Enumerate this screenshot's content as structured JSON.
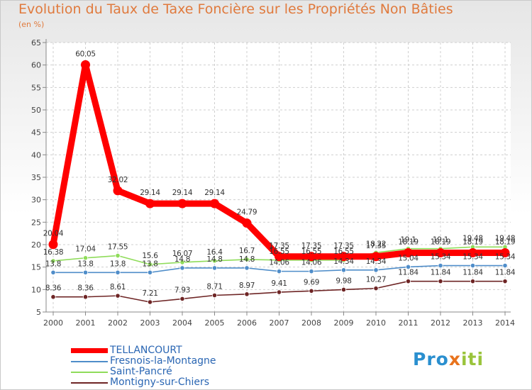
{
  "chart_data": {
    "type": "line",
    "title": "Evolution du Taux de Taxe Foncière sur les Propriétés Non Bâties",
    "ylabel": "(en %)",
    "xlabel": "",
    "ylim": [
      5,
      65
    ],
    "yticks": [
      5,
      10,
      15,
      20,
      25,
      30,
      35,
      40,
      45,
      50,
      55,
      60,
      65
    ],
    "categories": [
      "2000",
      "2001",
      "2002",
      "2003",
      "2004",
      "2005",
      "2006",
      "2007",
      "2008",
      "2009",
      "2010",
      "2011",
      "2012",
      "2013",
      "2014"
    ],
    "grid": true,
    "series": [
      {
        "name": "TELLANCOURT",
        "color": "#ff0000",
        "values": [
          20.04,
          60.05,
          32.02,
          29.14,
          29.14,
          29.14,
          24.79,
          17.35,
          17.35,
          17.35,
          17.35,
          18.19,
          18.19,
          18.19,
          18.19
        ],
        "labels": [
          "20.04",
          "60.05",
          "32.02",
          "29.14",
          "29.14",
          "29.14",
          "24.79",
          "17.35",
          "17.35",
          "17.35",
          "17.35",
          "18.19",
          "18.19",
          "18.19",
          "18.19"
        ]
      },
      {
        "name": "Fresnois-la-Montagne",
        "color": "#4f8dc9",
        "values": [
          13.8,
          13.8,
          13.8,
          13.8,
          14.8,
          14.8,
          14.8,
          14.06,
          14.06,
          14.34,
          14.34,
          15.04,
          15.34,
          15.34,
          15.34
        ],
        "labels": [
          "13.8",
          "13.8",
          "13.8",
          "13.8",
          "14.8",
          "14.8",
          "14.8",
          "14.06",
          "14.06",
          "14.34",
          "14.34",
          "15.04",
          "15.34",
          "15.34",
          "15.34"
        ]
      },
      {
        "name": "Saint-Pancré",
        "color": "#8fdc5a",
        "values": [
          16.38,
          17.04,
          17.55,
          15.6,
          16.07,
          16.4,
          16.7,
          16.55,
          16.55,
          16.55,
          18.22,
          19.1,
          19.1,
          19.48,
          19.48
        ],
        "labels": [
          "16.38",
          "17.04",
          "17.55",
          "15.6",
          "16.07",
          "16.4",
          "16.7",
          "16.55",
          "16.55",
          "16.55",
          "18.22",
          "19.1",
          "19.1",
          "19.48",
          "19.48"
        ]
      },
      {
        "name": "Montigny-sur-Chiers",
        "color": "#6e2525",
        "values": [
          8.36,
          8.36,
          8.61,
          7.21,
          7.93,
          8.71,
          8.97,
          9.41,
          9.69,
          9.98,
          10.27,
          11.84,
          11.84,
          11.84,
          11.84
        ],
        "labels": [
          "8.36",
          "8.36",
          "8.61",
          "7.21",
          "7.93",
          "8.71",
          "8.97",
          "9.41",
          "9.69",
          "9.98",
          "10.27",
          "11.84",
          "11.84",
          "11.84",
          "11.84"
        ]
      }
    ],
    "legend": [
      "TELLANCOURT",
      "Fresnois-la-Montagne",
      "Saint-Pancré",
      "Montigny-sur-Chiers"
    ]
  },
  "logo": {
    "part1": "Pro",
    "part2": "x",
    "part3": "iti"
  }
}
